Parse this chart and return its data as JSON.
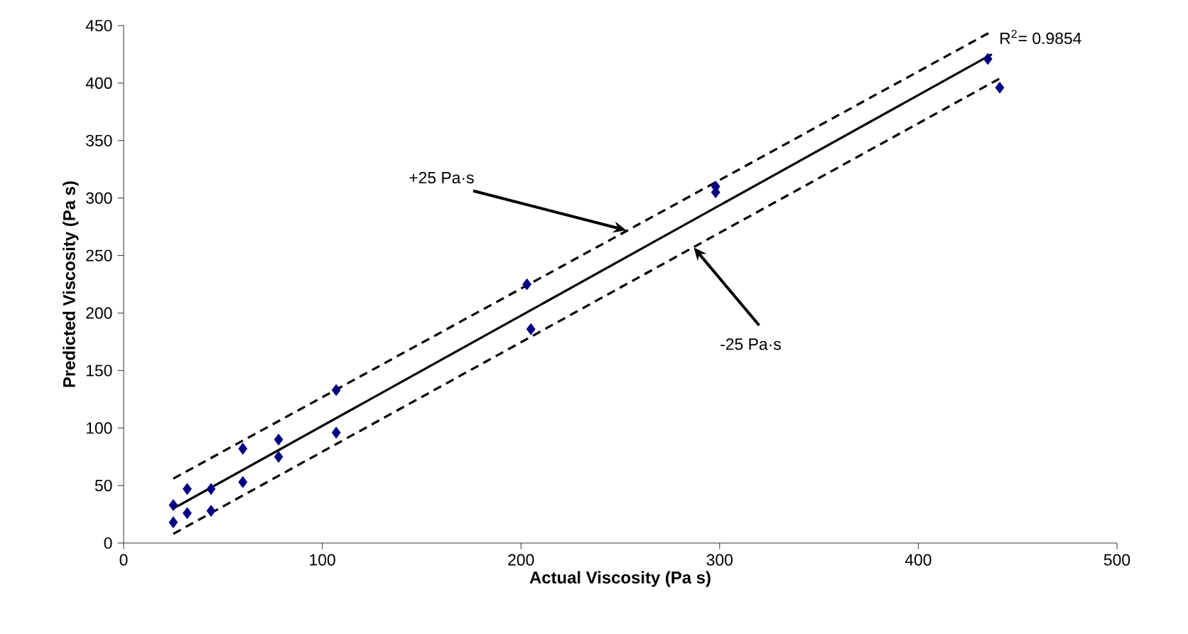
{
  "chart_data": {
    "type": "scatter",
    "xlabel": "Actual Viscosity (Pa s)",
    "ylabel": "Predicted Viscosity (Pa s)",
    "xlim": [
      0,
      500
    ],
    "ylim": [
      0,
      450
    ],
    "xticks": [
      0,
      100,
      200,
      300,
      400,
      500
    ],
    "yticks": [
      0,
      50,
      100,
      150,
      200,
      250,
      300,
      350,
      400,
      450
    ],
    "grid": false,
    "series": [
      {
        "marker": "diamond",
        "color": "#000080",
        "x": [
          25,
          25,
          32,
          32,
          44,
          44,
          60,
          60,
          78,
          78,
          107,
          107,
          203,
          205,
          298,
          298,
          435,
          441
        ],
        "values": [
          33,
          18,
          47,
          26,
          47,
          28,
          82,
          53,
          90,
          75,
          133,
          96,
          225,
          186,
          310,
          305,
          421,
          396
        ]
      },
      {
        "type": "line",
        "color": "#000000",
        "line_style": "solid",
        "x": [
          25,
          437
        ],
        "values": [
          30,
          425
        ]
      },
      {
        "type": "line",
        "color": "#000000",
        "line_style": "dashed",
        "x": [
          25,
          437
        ],
        "values": [
          56,
          445
        ]
      },
      {
        "type": "line",
        "color": "#000000",
        "line_style": "dashed",
        "x": [
          25,
          441
        ],
        "values": [
          8,
          404
        ]
      }
    ],
    "annotations": [
      {
        "text": "R$^{2}$= 0.9854",
        "x": 437,
        "y": 425
      },
      {
        "text": "+25 Pa·s",
        "x": 253,
        "y": 272
      },
      {
        "text": "-25 Pa·s",
        "x": 287,
        "y": 257
      }
    ]
  }
}
